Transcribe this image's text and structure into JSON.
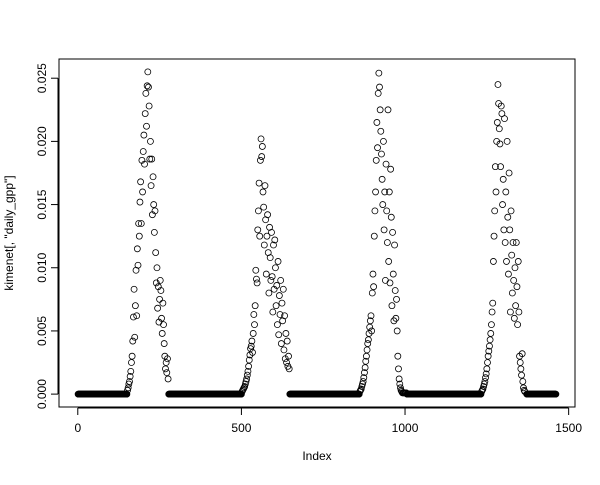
{
  "chart_data": {
    "type": "scatter",
    "title": "",
    "xlabel": "Index",
    "ylabel": "kimenet[, \"daily_gpp\"]",
    "xlim": [
      1,
      1461
    ],
    "ylim": [
      0,
      0.0255
    ],
    "x_ticks": [
      0,
      500,
      1000,
      1500
    ],
    "x_tick_labels": [
      "0",
      "500",
      "1000",
      "1500"
    ],
    "y_ticks": [
      0,
      0.005,
      0.01,
      0.015,
      0.02,
      0.025
    ],
    "y_tick_labels": [
      "0.000",
      "0.005",
      "0.010",
      "0.015",
      "0.020",
      "0.025"
    ],
    "grid": false,
    "marker": "open-circle",
    "color": "#000000",
    "zero_runs": [
      [
        1,
        150
      ],
      [
        278,
        500
      ],
      [
        648,
        860
      ],
      [
        1006,
        1232
      ],
      [
        1372,
        1461
      ]
    ],
    "segments": [
      {
        "x_start": 152,
        "x_step": 2,
        "y": [
          0.0003,
          0.0005,
          0.0008,
          0.001,
          0.0014,
          0.0018,
          0.0025,
          0.003,
          0.0042,
          0.0061,
          0.0083,
          0.0045,
          0.007,
          0.0098,
          0.0062,
          0.0115,
          0.0102,
          0.0135,
          0.0125,
          0.0152,
          0.0168,
          0.0135,
          0.0185,
          0.016,
          0.0192,
          0.0205,
          0.0182,
          0.0222,
          0.0238,
          0.0212,
          0.0244,
          0.0255,
          0.0243,
          0.0228,
          0.0186,
          0.02,
          0.0165,
          0.0186,
          0.0142,
          0.0172,
          0.015,
          0.0128,
          0.0145,
          0.0112,
          0.0088,
          0.01,
          0.0068,
          0.0085,
          0.0057,
          0.0075,
          0.009,
          0.0082,
          0.006,
          0.0048,
          0.0072,
          0.0055,
          0.004,
          0.003,
          0.002,
          0.0025,
          0.0017,
          0.0028,
          0.0012
        ]
      },
      {
        "x_start": 502,
        "x_step": 2,
        "y": [
          0.0002,
          0.0003,
          0.0004,
          0.0005,
          0.0006,
          0.0008,
          0.001,
          0.0012,
          0.0015,
          0.0018,
          0.0022,
          0.0027,
          0.0031,
          0.0036,
          0.0038,
          0.0042,
          0.0033,
          0.0048,
          0.0063,
          0.0055,
          0.007,
          0.0098,
          0.0091,
          0.0088,
          0.013,
          0.0145,
          0.0167,
          0.0125,
          0.0185,
          0.0202,
          0.0188,
          0.0196,
          0.016,
          0.0148,
          0.0118,
          0.0165,
          0.0138,
          0.0095,
          0.0125,
          0.0142,
          0.0112,
          0.008,
          0.0132,
          0.0108,
          0.009,
          0.0128,
          0.0093,
          0.0065,
          0.0118,
          0.0083,
          0.0122,
          0.01,
          0.007,
          0.0086,
          0.0055,
          0.0105,
          0.0047,
          0.0078,
          0.0063,
          0.009,
          0.004,
          0.0072,
          0.0058,
          0.0083,
          0.0035,
          0.0062,
          0.0028,
          0.0048,
          0.0025,
          0.0042,
          0.0022,
          0.003,
          0.002
        ]
      },
      {
        "x_start": 862,
        "x_step": 2,
        "y": [
          0.0002,
          0.0003,
          0.0004,
          0.0006,
          0.0008,
          0.001,
          0.0013,
          0.0017,
          0.0021,
          0.0026,
          0.003,
          0.0035,
          0.004,
          0.0043,
          0.0048,
          0.0053,
          0.0058,
          0.0062,
          0.005,
          0.008,
          0.0095,
          0.0085,
          0.0125,
          0.0145,
          0.016,
          0.0185,
          0.0215,
          0.0195,
          0.0238,
          0.0254,
          0.0243,
          0.0225,
          0.0208,
          0.019,
          0.017,
          0.015,
          0.02,
          0.013,
          0.016,
          0.009,
          0.0182,
          0.0145,
          0.012,
          0.0225,
          0.0105,
          0.016,
          0.0088,
          0.0178,
          0.014,
          0.007,
          0.0128,
          0.0095,
          0.0058,
          0.0118,
          0.0082,
          0.006,
          0.0075,
          0.005,
          0.003,
          0.002,
          0.0012,
          0.0008,
          0.0005,
          0.0003,
          0.0002,
          0.0001,
          0.0001,
          0.0001,
          0.0001,
          0.0001,
          0.0001,
          0.0001
        ]
      },
      {
        "x_start": 1234,
        "x_step": 2,
        "y": [
          0.0002,
          0.0003,
          0.0004,
          0.0006,
          0.0008,
          0.001,
          0.0013,
          0.0016,
          0.002,
          0.0025,
          0.003,
          0.0034,
          0.0038,
          0.0043,
          0.0048,
          0.0055,
          0.0065,
          0.0072,
          0.0105,
          0.0125,
          0.0145,
          0.018,
          0.016,
          0.02,
          0.0215,
          0.0245,
          0.023,
          0.021,
          0.0198,
          0.018,
          0.0228,
          0.0222,
          0.015,
          0.017,
          0.013,
          0.0218,
          0.012,
          0.016,
          0.0105,
          0.02,
          0.014,
          0.0095,
          0.0175,
          0.013,
          0.0065,
          0.0145,
          0.011,
          0.008,
          0.012,
          0.009,
          0.006,
          0.01,
          0.007,
          0.012,
          0.0085,
          0.0055,
          0.0105,
          0.0065,
          0.003,
          0.0025,
          0.002,
          0.0015,
          0.0032,
          0.001,
          0.0005,
          0.0003,
          0.0002
        ]
      }
    ]
  }
}
